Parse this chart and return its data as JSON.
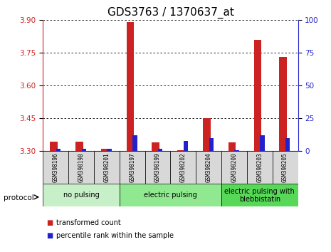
{
  "title": "GDS3763 / 1370637_at",
  "samples": [
    "GSM398196",
    "GSM398198",
    "GSM398201",
    "GSM398197",
    "GSM398199",
    "GSM398202",
    "GSM398204",
    "GSM398200",
    "GSM398203",
    "GSM398205"
  ],
  "red_values": [
    3.345,
    3.345,
    3.31,
    3.89,
    3.34,
    3.305,
    3.45,
    3.34,
    3.81,
    3.73
  ],
  "blue_values": [
    2,
    2,
    2,
    12,
    2,
    8,
    10,
    1,
    12,
    10
  ],
  "ylim_left": [
    3.3,
    3.9
  ],
  "ylim_right": [
    0,
    100
  ],
  "yticks_left": [
    3.3,
    3.45,
    3.6,
    3.75,
    3.9
  ],
  "yticks_right": [
    0,
    25,
    50,
    75,
    100
  ],
  "groups": [
    {
      "label": "no pulsing",
      "start": 0,
      "end": 3,
      "color": "#c8f0c8"
    },
    {
      "label": "electric pulsing",
      "start": 3,
      "end": 7,
      "color": "#90e890"
    },
    {
      "label": "electric pulsing with\nblebbistatin",
      "start": 7,
      "end": 10,
      "color": "#58d858"
    }
  ],
  "legend_red_label": "transformed count",
  "legend_blue_label": "percentile rank within the sample",
  "protocol_label": "protocol",
  "red_color": "#cc2222",
  "blue_color": "#2222cc",
  "bg_color": "#d8d8d8",
  "title_fontsize": 11,
  "tick_fontsize": 7.5,
  "label_fontsize": 7,
  "group_fontsize": 7,
  "legend_fontsize": 7
}
